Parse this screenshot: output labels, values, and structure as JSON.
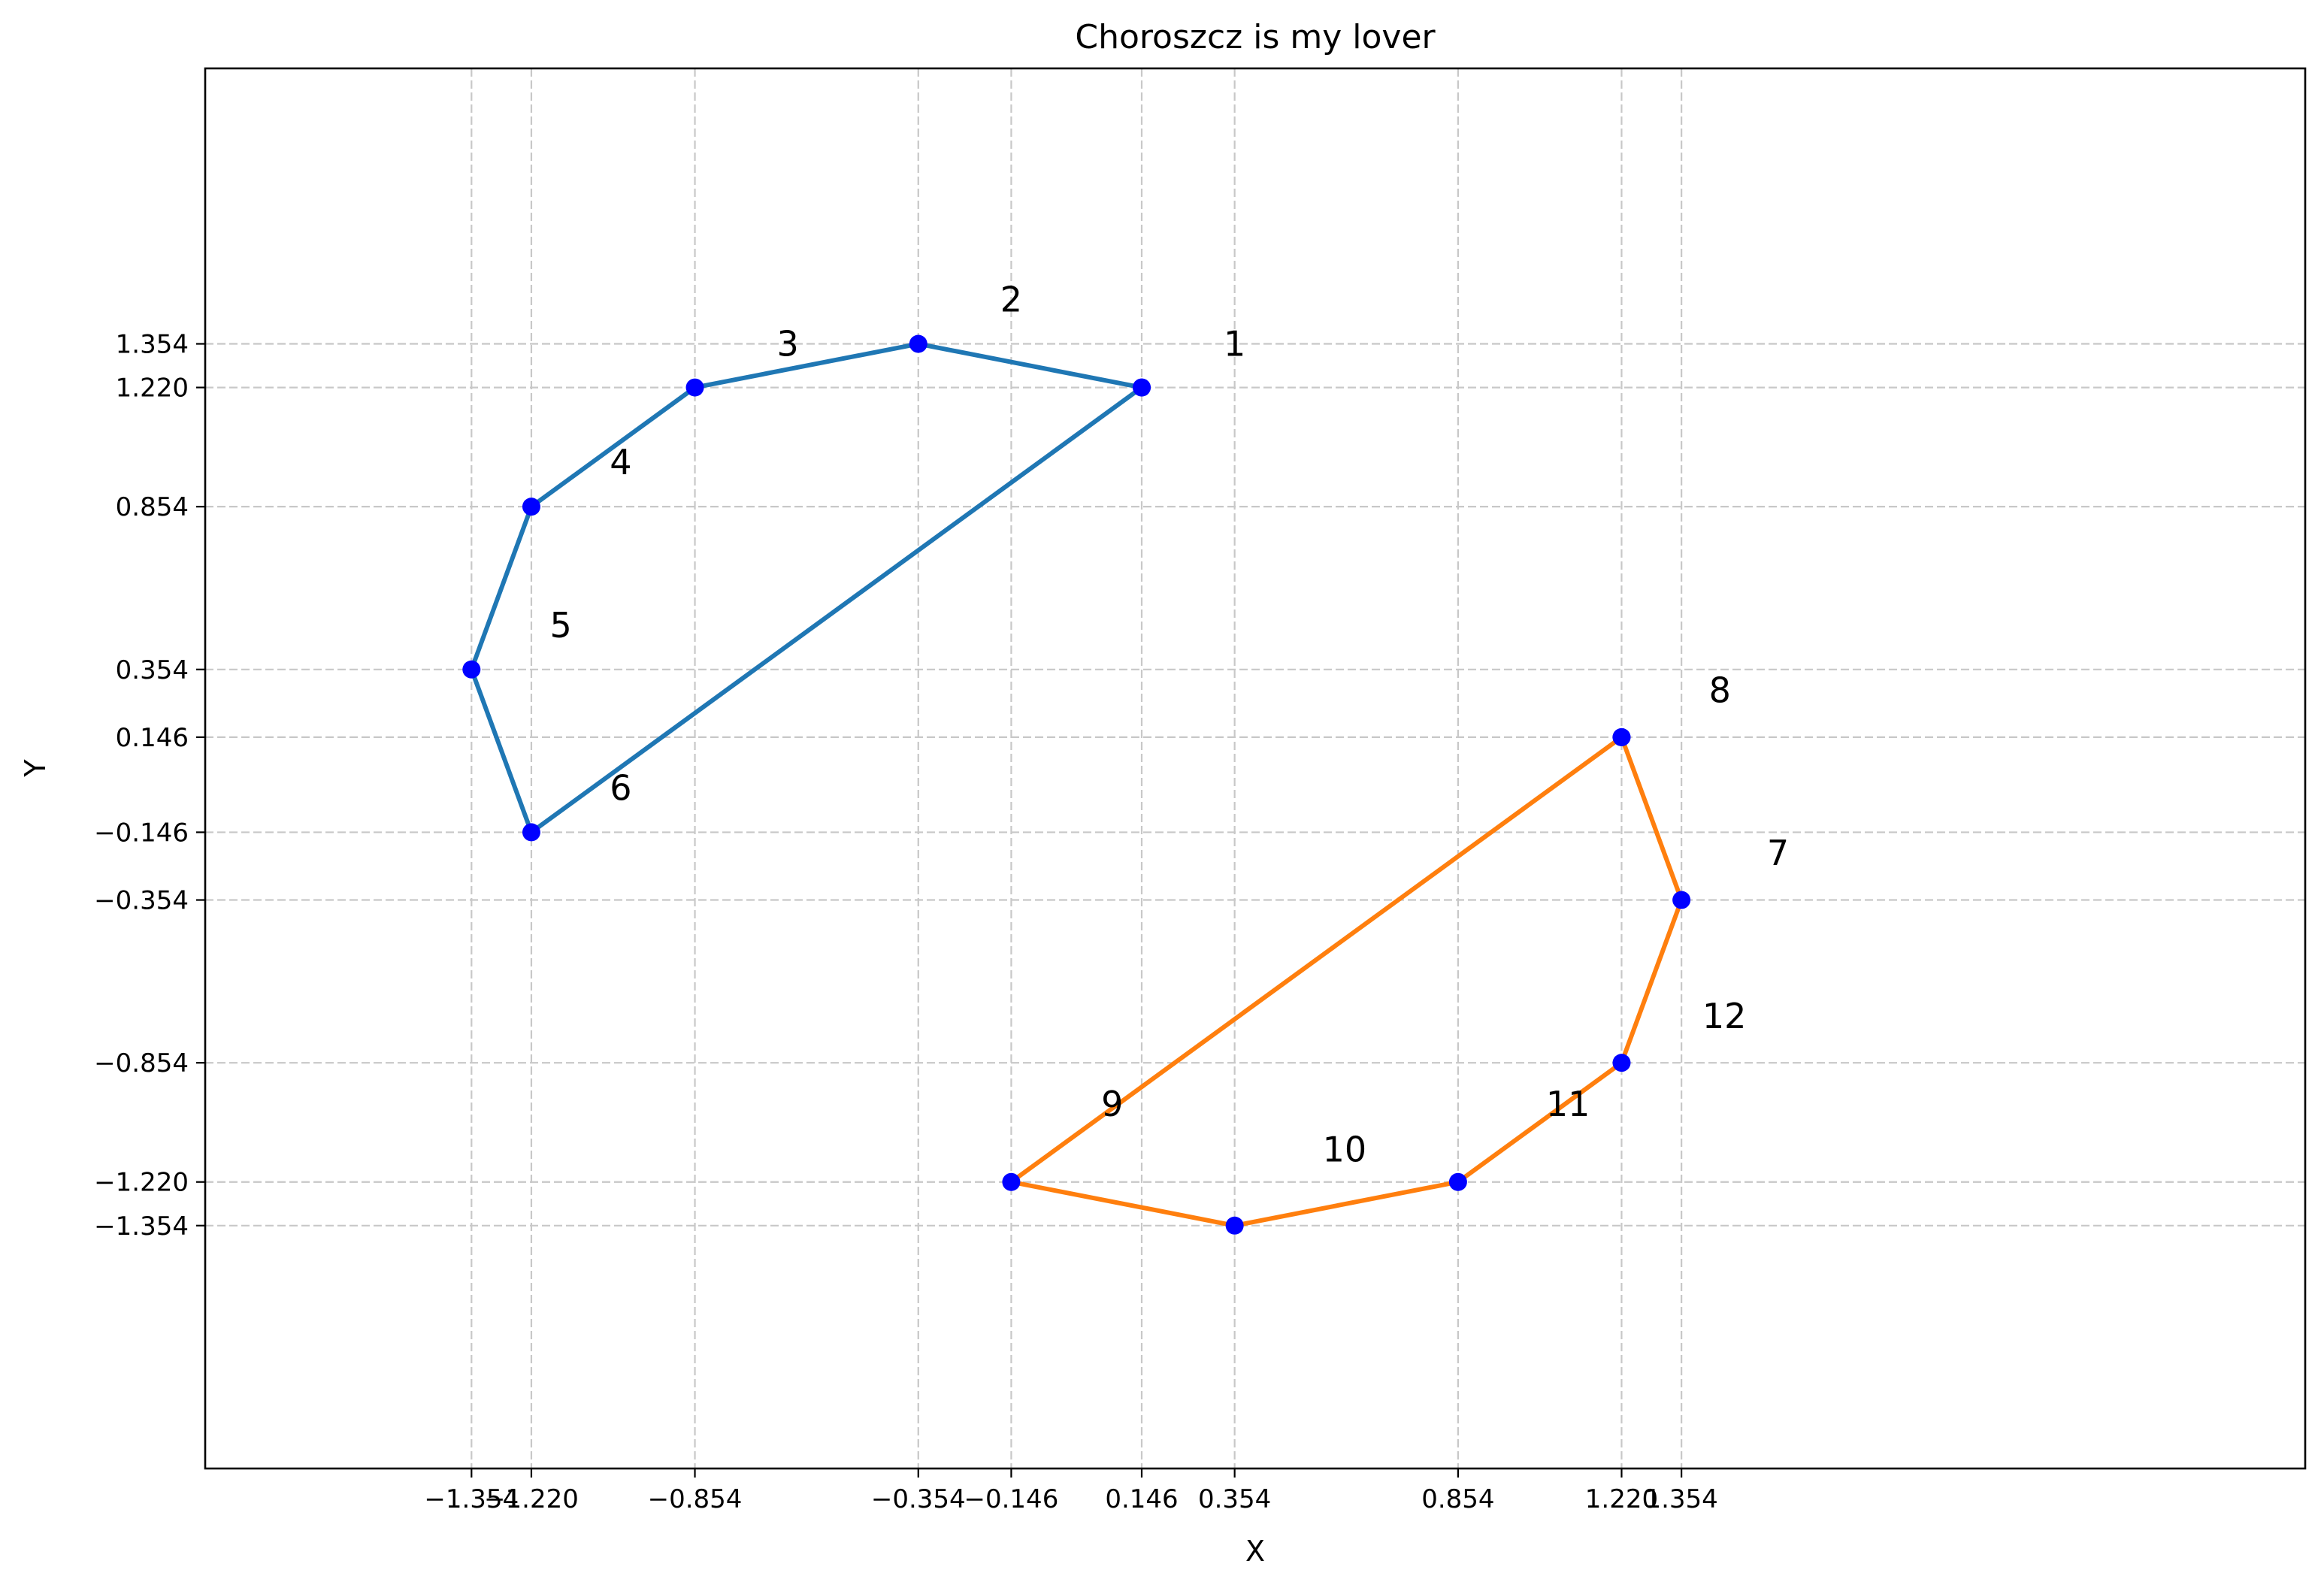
{
  "chart_data": {
    "type": "line",
    "title": "Choroszcz is my lover",
    "xlabel": "X",
    "ylabel": "Y",
    "xlim": [
      -1.95,
      2.75
    ],
    "ylim": [
      -2.1,
      2.2
    ],
    "grid": true,
    "x_ticks": [
      -1.354,
      -1.22,
      -0.854,
      -0.354,
      -0.146,
      0.146,
      0.354,
      0.854,
      1.22,
      1.354
    ],
    "x_tick_labels": [
      "−1.354",
      "−1.220",
      "−0.854",
      "−0.354",
      "−0.146",
      "0.146",
      "0.354",
      "0.854",
      "1.220",
      "1.354"
    ],
    "y_ticks": [
      1.354,
      1.22,
      0.854,
      0.354,
      0.146,
      -0.146,
      -0.354,
      -0.854,
      -1.22,
      -1.354
    ],
    "y_tick_labels": [
      "1.354",
      "1.220",
      "0.854",
      "0.354",
      "0.146",
      "−0.146",
      "−0.354",
      "−0.854",
      "−1.220",
      "−1.354"
    ],
    "series": [
      {
        "color": "#1f77b4",
        "points": [
          [
            0.146,
            1.22
          ],
          [
            -0.354,
            1.354
          ],
          [
            -0.854,
            1.22
          ],
          [
            -1.22,
            0.854
          ],
          [
            -1.354,
            0.354
          ],
          [
            -1.22,
            -0.146
          ],
          [
            0.146,
            1.22
          ]
        ]
      },
      {
        "color": "#ff7f0e",
        "points": [
          [
            1.22,
            0.146
          ],
          [
            1.354,
            -0.354
          ],
          [
            1.22,
            -0.854
          ],
          [
            0.854,
            -1.22
          ],
          [
            0.354,
            -1.354
          ],
          [
            -0.146,
            -1.22
          ],
          [
            1.22,
            0.146
          ]
        ]
      }
    ],
    "marker_color": "#0000ff",
    "annotations": [
      {
        "text": "1",
        "x": 0.354,
        "y": 1.354
      },
      {
        "text": "2",
        "x": -0.146,
        "y": 1.49
      },
      {
        "text": "3",
        "x": -0.646,
        "y": 1.354
      },
      {
        "text": "4",
        "x": -1.02,
        "y": 0.99
      },
      {
        "text": "5",
        "x": -1.154,
        "y": 0.49
      },
      {
        "text": "6",
        "x": -1.02,
        "y": -0.01
      },
      {
        "text": "7",
        "x": 1.57,
        "y": -0.21
      },
      {
        "text": "8",
        "x": 1.44,
        "y": 0.29
      },
      {
        "text": "9",
        "x": 0.08,
        "y": -0.98
      },
      {
        "text": "10",
        "x": 0.6,
        "y": -1.12
      },
      {
        "text": "11",
        "x": 1.1,
        "y": -0.98
      },
      {
        "text": "12",
        "x": 1.45,
        "y": -0.71
      }
    ]
  }
}
